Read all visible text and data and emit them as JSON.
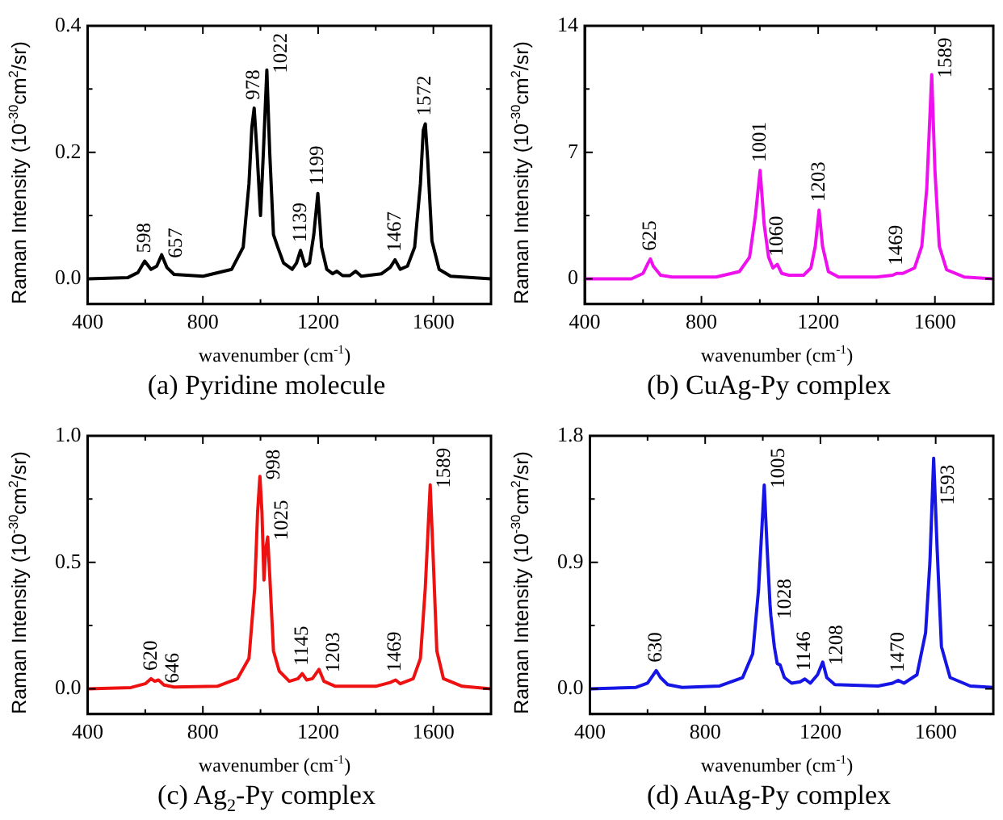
{
  "chart_data": [
    {
      "type": "line",
      "title": "(a) Pyridine molecule",
      "xlabel": "wavenumber (cm$^{-1}$)",
      "ylabel": "Raman Intensity (10$^{-30}$cm$^{2}$/sr)",
      "marker": "none",
      "line_style": "solid",
      "legend": false,
      "xlim": [
        400,
        1800
      ],
      "xticks": [
        400,
        {
          "value": 600,
          "label": null
        },
        800,
        {
          "value": 1000,
          "label": null
        },
        1200,
        {
          "value": 1400,
          "label": null
        },
        1600
      ],
      "ylim": [
        -0.04,
        0.4
      ],
      "yticks": [
        {
          "value": 0,
          "label": "0.0"
        },
        {
          "value": 0.1,
          "label": null
        },
        0.2,
        {
          "value": 0.3,
          "label": null
        },
        0.4
      ],
      "x": [
        400,
        540,
        575,
        598,
        620,
        640,
        657,
        675,
        700,
        800,
        900,
        940,
        960,
        970,
        978,
        988,
        1000,
        1010,
        1022,
        1032,
        1045,
        1060,
        1080,
        1110,
        1125,
        1139,
        1155,
        1170,
        1185,
        1199,
        1212,
        1230,
        1250,
        1265,
        1285,
        1310,
        1330,
        1350,
        1420,
        1450,
        1467,
        1485,
        1510,
        1535,
        1555,
        1565,
        1572,
        1580,
        1595,
        1620,
        1660,
        1800
      ],
      "series": [
        {
          "color": "#000000",
          "values": [
            0,
            0.002,
            0.01,
            0.028,
            0.015,
            0.02,
            0.038,
            0.018,
            0.007,
            0.004,
            0.015,
            0.05,
            0.15,
            0.24,
            0.27,
            0.2,
            0.1,
            0.2,
            0.33,
            0.2,
            0.07,
            0.05,
            0.025,
            0.015,
            0.025,
            0.045,
            0.02,
            0.025,
            0.07,
            0.135,
            0.05,
            0.015,
            0.008,
            0.012,
            0.005,
            0.005,
            0.012,
            0.004,
            0.008,
            0.018,
            0.03,
            0.015,
            0.02,
            0.05,
            0.15,
            0.235,
            0.245,
            0.19,
            0.06,
            0.015,
            0.004,
            0
          ]
        }
      ],
      "annotations": [
        {
          "text": "598",
          "x": 598,
          "y": 0.028
        },
        {
          "text": "657",
          "x": 657,
          "y": 0.038
        },
        {
          "text": "978",
          "x": 978,
          "y": 0.27
        },
        {
          "text": "1022",
          "x": 1022,
          "y": 0.33
        },
        {
          "text": "1139",
          "x": 1139,
          "y": 0.045
        },
        {
          "text": "1199",
          "x": 1199,
          "y": 0.135
        },
        {
          "text": "1467",
          "x": 1467,
          "y": 0.03
        },
        {
          "text": "1572",
          "x": 1572,
          "y": 0.245
        }
      ]
    },
    {
      "type": "line",
      "title": "(b) CuAg-Py complex",
      "xlabel": "wavenumber (cm$^{-1}$)",
      "ylabel": "Raman Intensity (10$^{-30}$cm$^{2}$/sr)",
      "marker": "none",
      "line_style": "solid",
      "legend": false,
      "xlim": [
        400,
        1800
      ],
      "xticks": [
        400,
        {
          "value": 600,
          "label": null
        },
        800,
        {
          "value": 1000,
          "label": null
        },
        1200,
        {
          "value": 1400,
          "label": null
        },
        1600
      ],
      "ylim": [
        -1.4,
        14
      ],
      "yticks": [
        0,
        {
          "value": 3.5,
          "label": null
        },
        7,
        {
          "value": 10.5,
          "label": null
        },
        14
      ],
      "x": [
        400,
        560,
        600,
        615,
        625,
        635,
        660,
        700,
        850,
        930,
        965,
        985,
        1001,
        1015,
        1030,
        1045,
        1060,
        1075,
        1100,
        1150,
        1175,
        1190,
        1203,
        1215,
        1235,
        1270,
        1400,
        1455,
        1469,
        1490,
        1530,
        1555,
        1572,
        1589,
        1600,
        1615,
        1640,
        1700,
        1800
      ],
      "series": [
        {
          "color": "#ee11ee",
          "values": [
            0,
            0,
            0.3,
            0.8,
            1.1,
            0.7,
            0.2,
            0.1,
            0.1,
            0.4,
            1.2,
            3.5,
            6.0,
            3.0,
            1.2,
            0.6,
            0.8,
            0.3,
            0.2,
            0.2,
            0.6,
            1.8,
            3.8,
            1.8,
            0.4,
            0.1,
            0.1,
            0.2,
            0.3,
            0.3,
            0.6,
            1.8,
            5.0,
            11.3,
            6,
            1.8,
            0.5,
            0.1,
            0
          ]
        }
      ],
      "annotations": [
        {
          "text": "625",
          "x": 625,
          "y": 1.1
        },
        {
          "text": "1001",
          "x": 1001,
          "y": 6.0
        },
        {
          "text": "1060",
          "x": 1060,
          "y": 0.8
        },
        {
          "text": "1203",
          "x": 1203,
          "y": 3.8
        },
        {
          "text": "1469",
          "x": 1469,
          "y": 0.3
        },
        {
          "text": "1589",
          "x": 1589,
          "y": 11.3
        }
      ]
    },
    {
      "type": "line",
      "title": "(c) Ag$_{2}$-Py complex",
      "xlabel": "wavenumber (cm$^{-1}$)",
      "ylabel": "Raman Intensity (10$^{-30}$cm$^{2}$/sr)",
      "marker": "none",
      "line_style": "solid",
      "legend": false,
      "xlim": [
        400,
        1800
      ],
      "xticks": [
        400,
        {
          "value": 600,
          "label": null
        },
        800,
        {
          "value": 1000,
          "label": null
        },
        1200,
        {
          "value": 1400,
          "label": null
        },
        1600
      ],
      "ylim": [
        -0.1,
        1
      ],
      "yticks": [
        {
          "value": 0,
          "label": "0.0"
        },
        {
          "value": 0.25,
          "label": null
        },
        0.5,
        {
          "value": 0.75,
          "label": null
        },
        {
          "value": 1,
          "label": "1.0"
        }
      ],
      "x": [
        400,
        550,
        600,
        620,
        633,
        646,
        665,
        700,
        850,
        920,
        960,
        980,
        990,
        998,
        1005,
        1012,
        1018,
        1025,
        1032,
        1045,
        1065,
        1100,
        1130,
        1145,
        1160,
        1180,
        1203,
        1220,
        1260,
        1400,
        1450,
        1469,
        1485,
        1530,
        1555,
        1572,
        1589,
        1600,
        1612,
        1635,
        1700,
        1800
      ],
      "series": [
        {
          "color": "#ee1111",
          "values": [
            0,
            0.005,
            0.02,
            0.04,
            0.03,
            0.035,
            0.015,
            0.007,
            0.01,
            0.04,
            0.12,
            0.4,
            0.7,
            0.84,
            0.7,
            0.43,
            0.55,
            0.6,
            0.45,
            0.15,
            0.07,
            0.03,
            0.04,
            0.06,
            0.035,
            0.04,
            0.077,
            0.03,
            0.01,
            0.01,
            0.025,
            0.035,
            0.02,
            0.04,
            0.12,
            0.4,
            0.806,
            0.5,
            0.15,
            0.04,
            0.01,
            0
          ]
        }
      ],
      "annotations": [
        {
          "text": "620",
          "x": 620,
          "y": 0.04
        },
        {
          "text": "646",
          "x": 646,
          "y": 0.035
        },
        {
          "text": "998",
          "x": 998,
          "y": 0.84
        },
        {
          "text": "1025",
          "x": 1025,
          "y": 0.6
        },
        {
          "text": "1145",
          "x": 1145,
          "y": 0.06
        },
        {
          "text": "1203",
          "x": 1203,
          "y": 0.077
        },
        {
          "text": "1469",
          "x": 1469,
          "y": 0.035
        },
        {
          "text": "1589",
          "x": 1589,
          "y": 0.806
        }
      ]
    },
    {
      "type": "line",
      "title": "(d) AuAg-Py complex",
      "xlabel": "wavenumber (cm$^{-1}$)",
      "ylabel": "Raman Intensity (10$^{-30}$cm$^{2}$/sr)",
      "marker": "none",
      "line_style": "solid",
      "legend": false,
      "xlim": [
        400,
        1800
      ],
      "xticks": [
        400,
        {
          "value": 600,
          "label": null
        },
        800,
        {
          "value": 1000,
          "label": null
        },
        1200,
        {
          "value": 1400,
          "label": null
        },
        1600
      ],
      "ylim": [
        -0.18,
        1.8
      ],
      "yticks": [
        {
          "value": 0,
          "label": "0.0"
        },
        {
          "value": 0.45,
          "label": null
        },
        0.9,
        {
          "value": 1.35,
          "label": null
        },
        1.8
      ],
      "x": [
        400,
        560,
        600,
        620,
        630,
        645,
        670,
        720,
        850,
        930,
        965,
        985,
        1005,
        1015,
        1025,
        1028,
        1040,
        1050,
        1060,
        1075,
        1100,
        1130,
        1146,
        1165,
        1190,
        1208,
        1222,
        1250,
        1400,
        1450,
        1470,
        1490,
        1535,
        1565,
        1580,
        1593,
        1605,
        1620,
        1650,
        1720,
        1800
      ],
      "series": [
        {
          "color": "#1515e6",
          "values": [
            0,
            0.01,
            0.04,
            0.1,
            0.13,
            0.08,
            0.03,
            0.01,
            0.02,
            0.08,
            0.25,
            0.7,
            1.45,
            1.0,
            0.6,
            0.52,
            0.3,
            0.18,
            0.17,
            0.08,
            0.04,
            0.05,
            0.07,
            0.04,
            0.1,
            0.19,
            0.08,
            0.03,
            0.02,
            0.04,
            0.06,
            0.04,
            0.1,
            0.4,
            0.9,
            1.64,
            1.0,
            0.3,
            0.08,
            0.02,
            0.01
          ]
        }
      ],
      "annotations": [
        {
          "text": "630",
          "x": 630,
          "y": 0.13
        },
        {
          "text": "1005",
          "x": 1005,
          "y": 1.45
        },
        {
          "text": "1028",
          "x": 1028,
          "y": 0.52
        },
        {
          "text": "1146",
          "x": 1146,
          "y": 0.07
        },
        {
          "text": "1208",
          "x": 1208,
          "y": 0.19
        },
        {
          "text": "1470",
          "x": 1470,
          "y": 0.06
        },
        {
          "text": "1593",
          "x": 1593,
          "y": 1.64
        }
      ]
    }
  ]
}
